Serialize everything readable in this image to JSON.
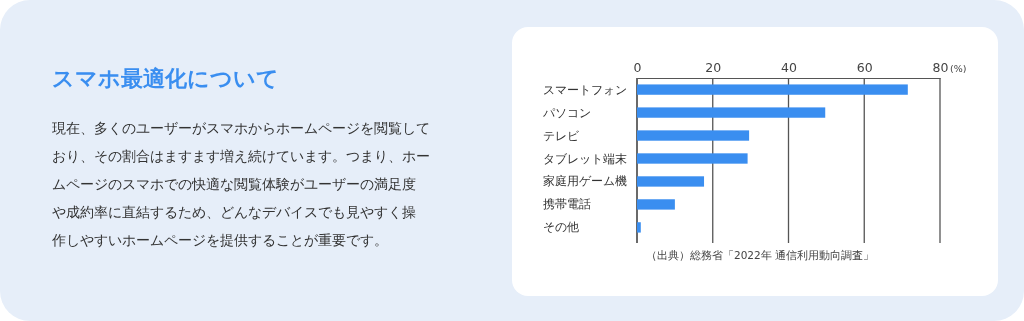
{
  "chart_data": [
    {
      "type": "other",
      "title": "スマホ最適化について",
      "annotations": [
        "現在、多くのユーザーがスマホからホームページを閲覧して",
        "おり、その割合はますます増え続けています。つまり、ホー",
        "ムページのスマホでの快適な閲覧体験がユーザーの満足度",
        "や成約率に直結するため、どんなデバイスでも見やすく操",
        "作しやすいホームページを提供することが重要です。"
      ]
    },
    {
      "type": "bar",
      "orientation": "horizontal",
      "categories": [
        "スマートフォン",
        "パソコン",
        "テレビ",
        "タブレット端末",
        "家庭用ゲーム機",
        "携帯電話",
        "その他"
      ],
      "values": [
        71.5,
        49.7,
        29.6,
        29.2,
        17.7,
        10.0,
        1.0
      ],
      "color": "#3a8ef0",
      "xlim": [
        0,
        80
      ],
      "xticks": [
        0,
        20,
        40,
        60,
        80
      ],
      "xlabel": "(%)",
      "grid": "x",
      "annotations": [
        "（出典）総務省「2022年 通信利用動向調査」"
      ]
    }
  ]
}
